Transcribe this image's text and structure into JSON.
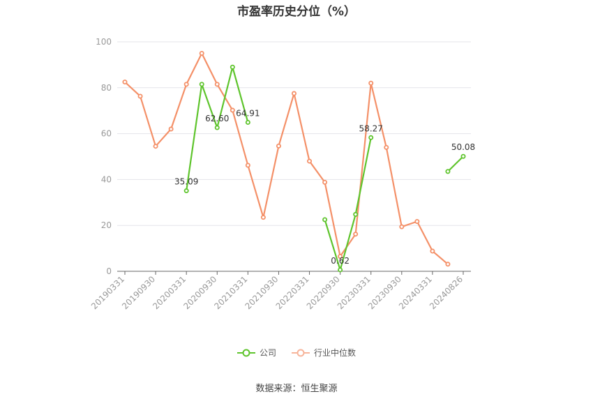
{
  "chart_data": {
    "type": "line",
    "title": "市盈率历史分位（%）",
    "ylim": [
      0,
      100
    ],
    "yticks": [
      0,
      20,
      40,
      60,
      80,
      100
    ],
    "grid": true,
    "legend_position": "bottom",
    "x": [
      "20190331",
      "20190630",
      "20190930",
      "20191231",
      "20200331",
      "20200630",
      "20200930",
      "20201231",
      "20210331",
      "20210630",
      "20210930",
      "20211231",
      "20220331",
      "20220630",
      "20220930",
      "20221231",
      "20230331",
      "20230630",
      "20230930",
      "20231231",
      "20240331",
      "20240630",
      "20240826"
    ],
    "xtick_labels": [
      "20190331",
      "20190930",
      "20200331",
      "20200930",
      "20210331",
      "20210930",
      "20220331",
      "20220930",
      "20230331",
      "20230930",
      "20240331",
      "20240826"
    ],
    "series": [
      {
        "name": "公司",
        "color": "#5ec42c",
        "values": [
          null,
          null,
          null,
          null,
          35.09,
          81.5,
          62.6,
          89.0,
          64.91,
          null,
          null,
          null,
          null,
          22.5,
          0.62,
          24.8,
          58.27,
          null,
          null,
          null,
          null,
          43.5,
          50.08
        ],
        "labels": {
          "4": "35.09",
          "6": "62.60",
          "8": "64.91",
          "14": "0.62",
          "16": "58.27",
          "22": "50.08"
        }
      },
      {
        "name": "行业中位数",
        "color": "#f49068",
        "values": [
          82.5,
          76.3,
          54.5,
          62.0,
          81.5,
          95.0,
          81.5,
          70.2,
          46.2,
          23.5,
          54.6,
          77.5,
          48.0,
          38.8,
          6.5,
          16.2,
          82.0,
          54.0,
          19.4,
          21.7,
          8.8,
          3.1,
          null
        ]
      }
    ]
  },
  "legend": {
    "company": "公司",
    "industry": "行业中位数"
  },
  "source": "数据来源：恒生聚源"
}
